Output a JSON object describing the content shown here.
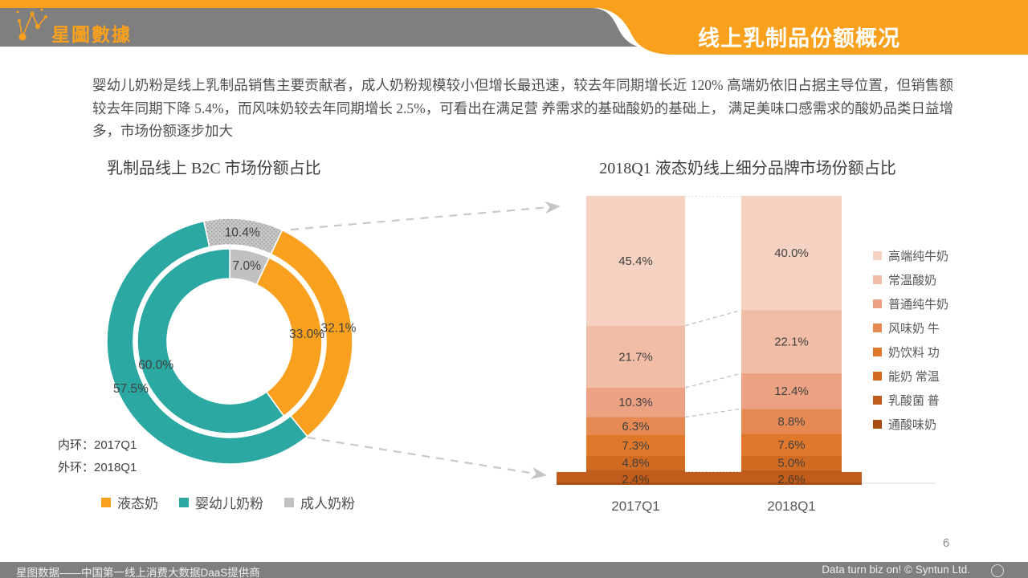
{
  "header": {
    "logo_text": "星圖數據",
    "title": "线上乳制品份额概况"
  },
  "intro": "婴幼儿奶粉是线上乳制品销售主要贡献者，成人奶粉规模较小但增长最迅速，较去年同期增长近 120%  高端奶依旧占据主导位置，但销售额较去年同期下降 5.4%，而风味奶较去年同期增长 2.5%，可看出在满足营 养需求的基础酸奶的基础上，  满足美味口感需求的酸奶品类日益增多，市场份额逐步加大",
  "footer": {
    "left": "星图数据——中国第一线上消费大数据DaaS提供商",
    "right": "Data turn biz on! © Syntun Ltd.",
    "page": "6"
  },
  "chart_data": [
    {
      "type": "pie",
      "variant": "two-ring-donut",
      "title": "乳制品线上 B2C 市场份额占比",
      "categories": [
        "液态奶",
        "婴幼儿奶粉",
        "成人奶粉"
      ],
      "colors": [
        "#F9A11E",
        "#2AA8A1",
        "#C1C1C1"
      ],
      "series": [
        {
          "name": "2017Q1",
          "ring": "inner",
          "values": [
            33.0,
            60.0,
            7.0
          ]
        },
        {
          "name": "2018Q1",
          "ring": "outer",
          "values": [
            32.1,
            57.5,
            10.4
          ]
        }
      ],
      "annotations": [
        "内环：2017Q1",
        "外环：2018Q1"
      ],
      "legend_position": "bottom",
      "value_suffix": "%"
    },
    {
      "type": "bar",
      "variant": "stacked-100",
      "title": "2018Q1 液态奶线上细分品牌市场份额占比",
      "categories": [
        "2017Q1",
        "2018Q1"
      ],
      "colors": [
        "#F6D2C2",
        "#F2BDA6",
        "#ECA183",
        "#E68952",
        "#E0782C",
        "#D26B22",
        "#C05D1D",
        "#A84E13"
      ],
      "series": [
        {
          "name": "高端纯牛奶",
          "values": [
            45.4,
            40.0
          ]
        },
        {
          "name": "常温酸奶",
          "values": [
            21.7,
            22.1
          ]
        },
        {
          "name": "普通纯牛奶",
          "values": [
            10.3,
            12.4
          ]
        },
        {
          "name": "风味奶 牛",
          "values": [
            6.3,
            8.8
          ]
        },
        {
          "name": "奶饮料 功",
          "values": [
            7.3,
            7.6
          ]
        },
        {
          "name": "能奶 常温",
          "values": [
            4.8,
            5.0
          ]
        },
        {
          "name": "乳酸菌 普",
          "values": [
            2.4,
            2.6
          ]
        },
        {
          "name": "通酸味奶",
          "values": [
            null,
            null
          ]
        }
      ],
      "legend_position": "right",
      "ylim": [
        0,
        100
      ],
      "value_suffix": "%"
    }
  ]
}
